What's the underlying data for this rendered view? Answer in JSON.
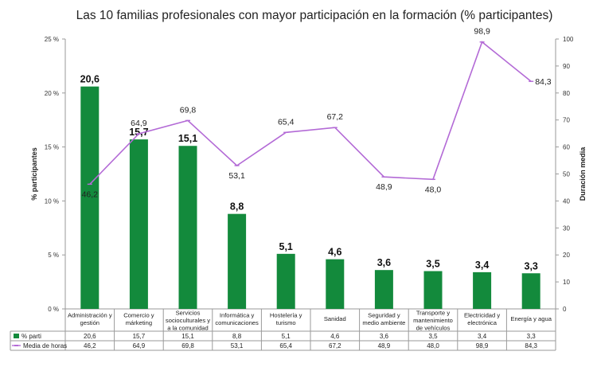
{
  "chart_data": {
    "type": "bar+line",
    "title": "Las 10 familias profesionales con mayor participación en la formación (% participantes)",
    "categories": [
      [
        "Administración y",
        "gestión"
      ],
      [
        "Comercio y",
        "márketing"
      ],
      [
        "Servicios",
        "socioculturales y",
        "a la comunidad"
      ],
      [
        "Informática y",
        "comunicaciones"
      ],
      [
        "Hostelería y",
        "turismo"
      ],
      [
        "Sanidad"
      ],
      [
        "Seguridad y",
        "medio ambiente"
      ],
      [
        "Transporte y",
        "mantenimiento",
        "de vehículos"
      ],
      [
        "Electricidad y",
        "electrónica"
      ],
      [
        "Energía y agua"
      ]
    ],
    "series": [
      {
        "name": "% parti",
        "type": "bar",
        "axis": "left",
        "color": "#138a3c",
        "values": [
          20.6,
          15.7,
          15.1,
          8.8,
          5.1,
          4.6,
          3.6,
          3.5,
          3.4,
          3.3
        ],
        "labels": [
          "20,6",
          "15,7",
          "15,1",
          "8,8",
          "5,1",
          "4,6",
          "3,6",
          "3,5",
          "3,4",
          "3,3"
        ]
      },
      {
        "name": "Media de horas",
        "type": "line",
        "axis": "right",
        "color": "#b36ad6",
        "values": [
          46.2,
          64.9,
          69.8,
          53.1,
          65.4,
          67.2,
          48.9,
          48.0,
          98.9,
          84.3
        ],
        "labels": [
          "46,2",
          "64,9",
          "69,8",
          "53,1",
          "65,4",
          "67,2",
          "48,9",
          "48,0",
          "98,9",
          "84,3"
        ]
      }
    ],
    "ylabel_left": "% participantes",
    "ylabel_right": "Duración media",
    "ylim_left": [
      0,
      25
    ],
    "ylim_right": [
      0,
      100
    ],
    "left_ticks": [
      "0 %",
      "5 %",
      "10 %",
      "15 %",
      "20 %",
      "25 %"
    ],
    "right_ticks": [
      "0",
      "10",
      "20",
      "30",
      "40",
      "50",
      "60",
      "70",
      "80",
      "90",
      "100"
    ],
    "grid": false,
    "legend": "data-table-below"
  }
}
